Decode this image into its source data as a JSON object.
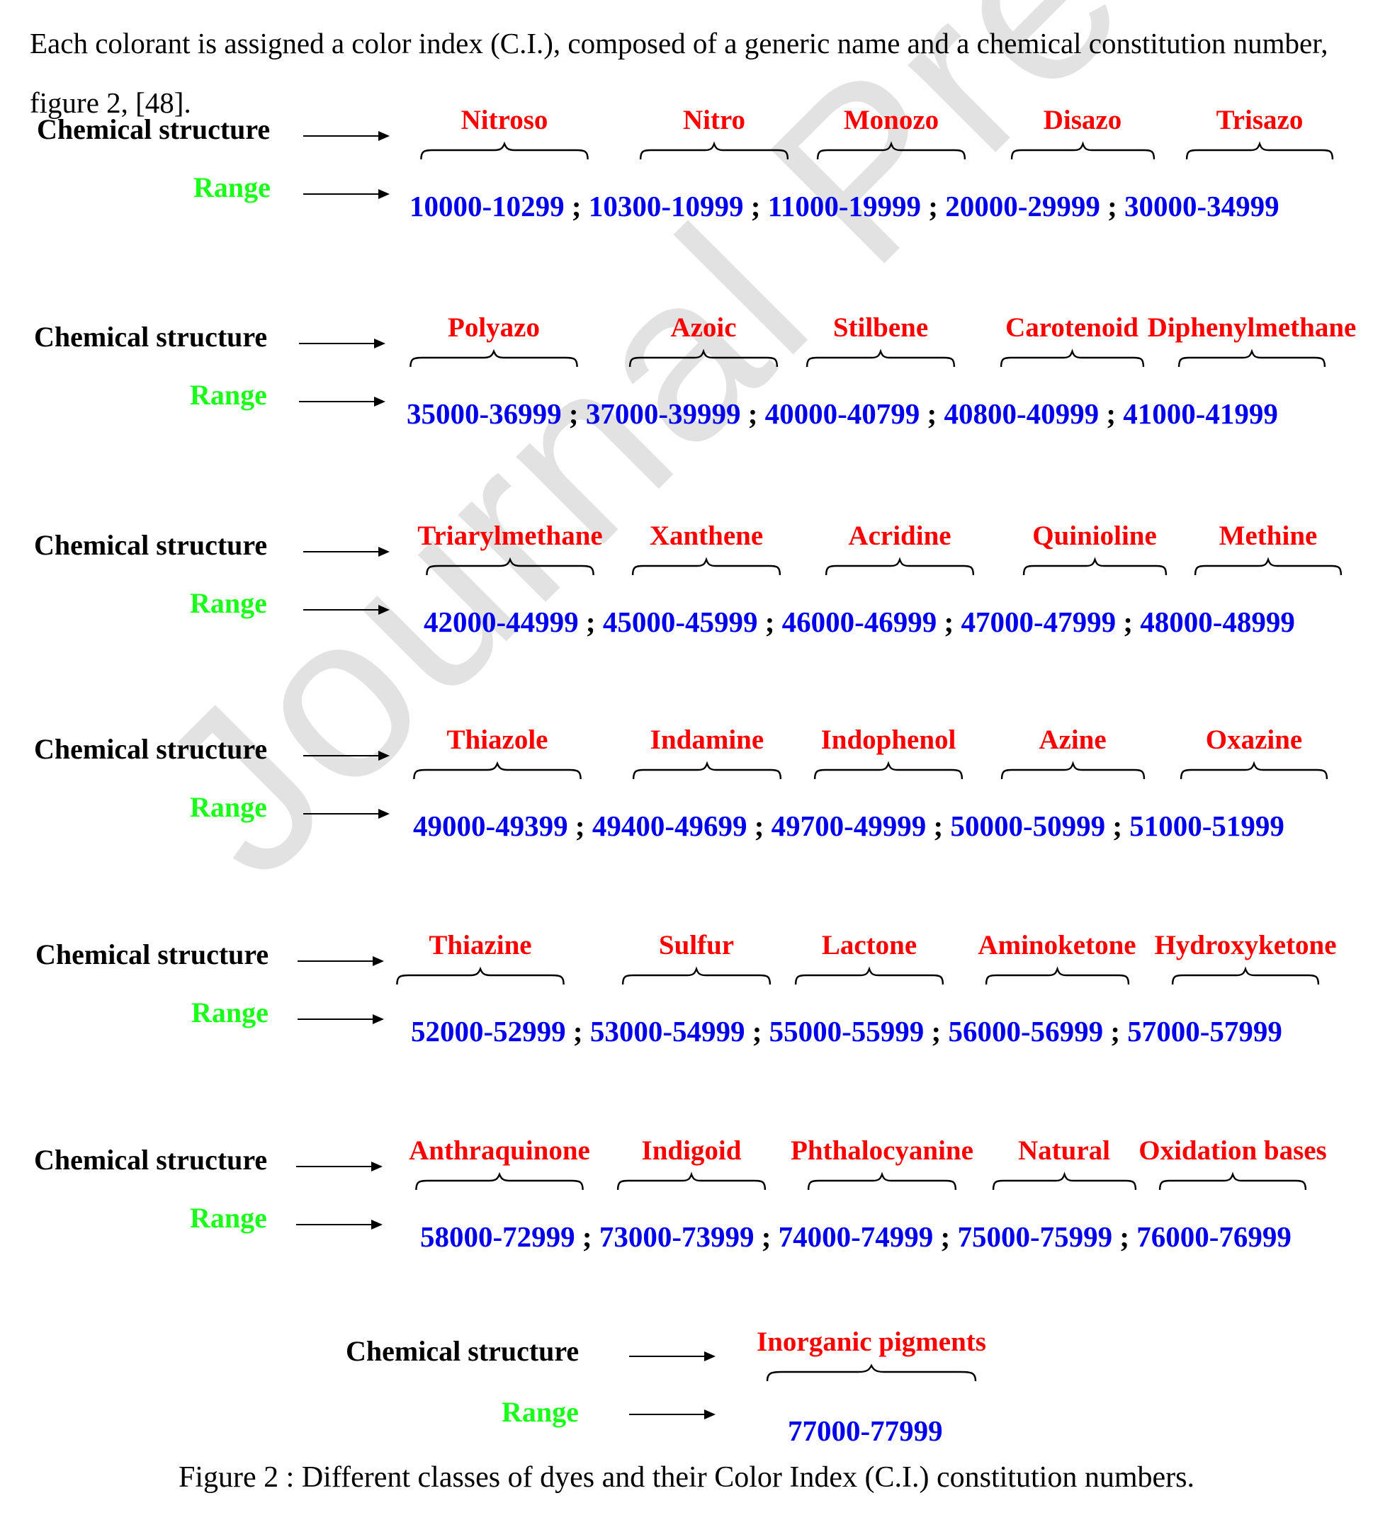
{
  "watermark": "Journal Pre-proofs",
  "intro_text": "Each colorant is assigned a color index (C.I.), composed of a generic name and a chemical constitution number, figure 2, [48].",
  "labels": {
    "chemical_structure": "Chemical structure",
    "range": "Range",
    "separator": ";"
  },
  "colors": {
    "class_name": "#ff0000",
    "range_label": "#1aff1a",
    "range_value": "#0000ee",
    "chemical_label": "#000000"
  },
  "figure": {
    "rows": [
      {
        "classes": [
          {
            "name": "Nitroso",
            "range": "10000-10299"
          },
          {
            "name": "Nitro",
            "range": "10300-10999"
          },
          {
            "name": "Monozo",
            "range": "11000-19999"
          },
          {
            "name": "Disazo",
            "range": "20000-29999"
          },
          {
            "name": "Trisazo",
            "range": "30000-34999"
          }
        ]
      },
      {
        "classes": [
          {
            "name": "Polyazo",
            "range": "35000-36999"
          },
          {
            "name": "Azoic",
            "range": "37000-39999"
          },
          {
            "name": "Stilbene",
            "range": "40000-40799"
          },
          {
            "name": "Carotenoid",
            "range": "40800-40999"
          },
          {
            "name": "Diphenylmethane",
            "range": "41000-41999"
          }
        ]
      },
      {
        "classes": [
          {
            "name": "Triarylmethane",
            "range": "42000-44999"
          },
          {
            "name": "Xanthene",
            "range": "45000-45999"
          },
          {
            "name": "Acridine",
            "range": "46000-46999"
          },
          {
            "name": "Quinioline",
            "range": "47000-47999"
          },
          {
            "name": "Methine",
            "range": "48000-48999"
          }
        ]
      },
      {
        "classes": [
          {
            "name": "Thiazole",
            "range": "49000-49399"
          },
          {
            "name": "Indamine",
            "range": "49400-49699"
          },
          {
            "name": "Indophenol",
            "range": "49700-49999"
          },
          {
            "name": "Azine",
            "range": "50000-50999"
          },
          {
            "name": "Oxazine",
            "range": "51000-51999"
          }
        ]
      },
      {
        "classes": [
          {
            "name": "Thiazine",
            "range": "52000-52999"
          },
          {
            "name": "Sulfur",
            "range": "53000-54999"
          },
          {
            "name": "Lactone",
            "range": "55000-55999"
          },
          {
            "name": "Aminoketone",
            "range": "56000-56999"
          },
          {
            "name": "Hydroxyketone",
            "range": "57000-57999"
          }
        ]
      },
      {
        "classes": [
          {
            "name": "Anthraquinone",
            "range": "58000-72999"
          },
          {
            "name": "Indigoid",
            "range": "73000-73999"
          },
          {
            "name": "Phthalocyanine",
            "range": "74000-74999"
          },
          {
            "name": "Natural",
            "range": "75000-75999"
          },
          {
            "name": "Oxidation bases",
            "range": "76000-76999"
          }
        ]
      },
      {
        "classes": [
          {
            "name": "Inorganic pigments",
            "range": "77000-77999"
          }
        ]
      }
    ],
    "caption": "Figure 2 : Different classes of dyes and their Color Index (C.I.) constitution numbers."
  }
}
